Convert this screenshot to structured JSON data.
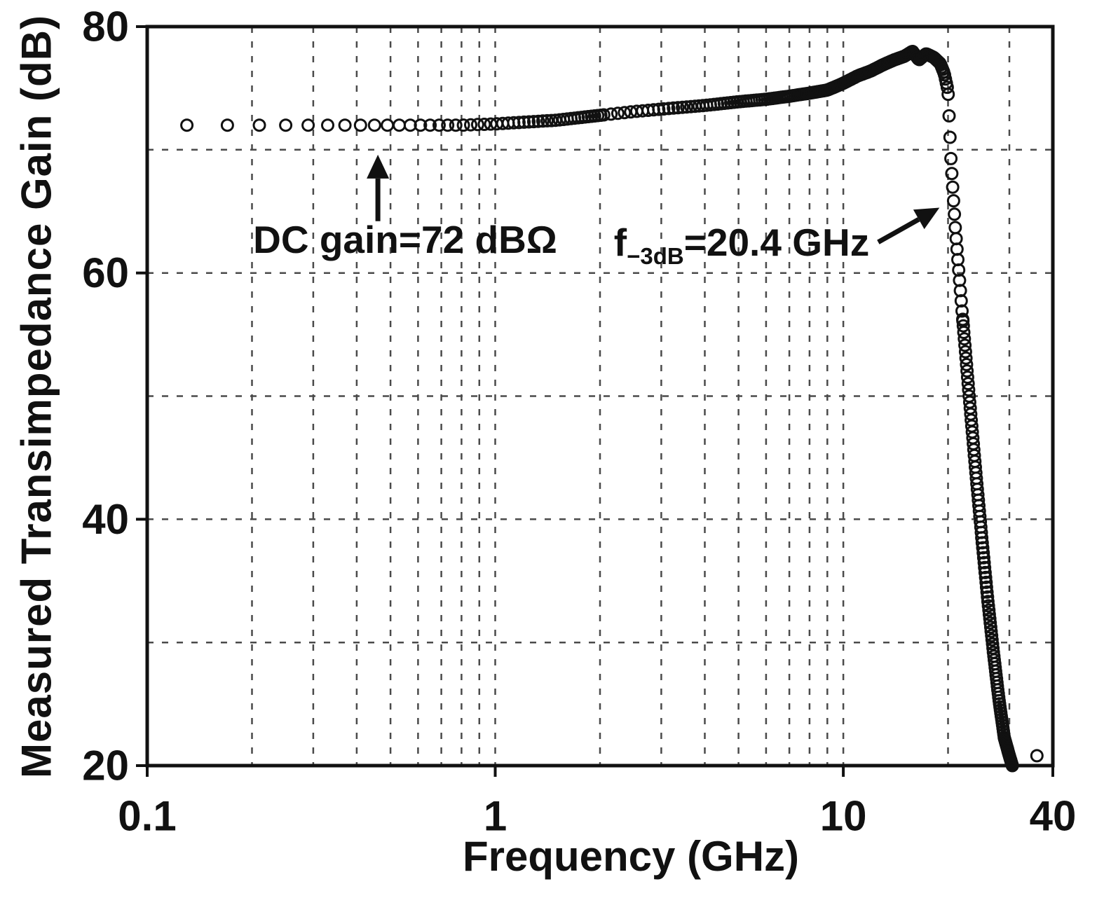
{
  "chart_data": {
    "type": "scatter",
    "marker": "open-circle",
    "title": "",
    "xlabel": "Frequency (GHz)",
    "ylabel": "Measured Transimpedance Gain (dB)",
    "x_scale": "log",
    "xlim": [
      0.1,
      40
    ],
    "ylim": [
      20,
      80
    ],
    "xticks": {
      "values": [
        0.1,
        1,
        10,
        40
      ],
      "labels": [
        "0.1",
        "1",
        "10",
        "40"
      ]
    },
    "yticks": {
      "values": [
        20,
        40,
        60,
        80
      ],
      "labels": [
        "20",
        "40",
        "60",
        "80"
      ]
    },
    "grid": {
      "style": "dashed",
      "x_values": [
        0.2,
        0.3,
        0.4,
        0.5,
        0.6,
        0.7,
        0.8,
        0.9,
        1,
        2,
        3,
        4,
        5,
        6,
        7,
        8,
        9,
        10,
        20,
        30
      ],
      "y_values": [
        30,
        40,
        50,
        60,
        70
      ]
    },
    "key_values": {
      "dc_gain_dBohm": 72,
      "f_minus3dB_GHz": 20.4
    },
    "series": [
      {
        "name": "Measured transimpedance gain",
        "anchor_points": [
          [
            0.12,
            72.0
          ],
          [
            0.5,
            72.0
          ],
          [
            0.8,
            72.0
          ],
          [
            1.0,
            72.1
          ],
          [
            1.5,
            72.4
          ],
          [
            2.0,
            72.8
          ],
          [
            2.5,
            73.1
          ],
          [
            3.0,
            73.3
          ],
          [
            4.0,
            73.6
          ],
          [
            5.0,
            73.9
          ],
          [
            6.0,
            74.1
          ],
          [
            7.0,
            74.35
          ],
          [
            8.0,
            74.6
          ],
          [
            9.0,
            74.85
          ],
          [
            10.0,
            75.4
          ],
          [
            11.0,
            76.0
          ],
          [
            12.0,
            76.4
          ],
          [
            13.0,
            76.9
          ],
          [
            14.0,
            77.3
          ],
          [
            15.0,
            77.6
          ],
          [
            15.8,
            78.0
          ],
          [
            16.5,
            77.3
          ],
          [
            17.3,
            77.8
          ],
          [
            18.2,
            77.5
          ],
          [
            19.0,
            77.0
          ],
          [
            19.5,
            76.2
          ],
          [
            20.0,
            74.8
          ],
          [
            20.4,
            69.0
          ],
          [
            21.0,
            63.5
          ],
          [
            22.0,
            56.5
          ],
          [
            23.0,
            50.0
          ],
          [
            24.0,
            44.0
          ],
          [
            25.0,
            38.5
          ],
          [
            26.0,
            33.5
          ],
          [
            27.0,
            29.2
          ],
          [
            28.0,
            25.4
          ],
          [
            29.0,
            22.3
          ],
          [
            30.0,
            20.8
          ],
          [
            30.6,
            20.0
          ]
        ],
        "sample_runs": [
          {
            "from": 0.13,
            "to": 2.0,
            "step": 0.04
          },
          {
            "from": 2.05,
            "to": 10.0,
            "step": 0.1
          },
          {
            "from": 10.06,
            "to": 22.0,
            "step": 0.12
          },
          {
            "from": 22.04,
            "to": 30.6,
            "step": 0.08
          }
        ],
        "outliers": [
          [
            36.0,
            20.8
          ]
        ]
      }
    ],
    "annotations": [
      {
        "id": "dc-gain",
        "text": "DC gain=72 dBΩ",
        "arrow": {
          "from": [
            0.46,
            64.2
          ],
          "to": [
            0.46,
            69.6
          ]
        }
      },
      {
        "id": "f-3db",
        "prefix": "f",
        "sub": "−3dB",
        "rest": "=20.4 GHz",
        "arrow": {
          "from": [
            12.6,
            62.5
          ],
          "to": [
            18.9,
            65.3
          ]
        }
      }
    ],
    "colors": {
      "foreground": "#111111",
      "grid": "#4a4a4a",
      "background": "#ffffff"
    }
  }
}
